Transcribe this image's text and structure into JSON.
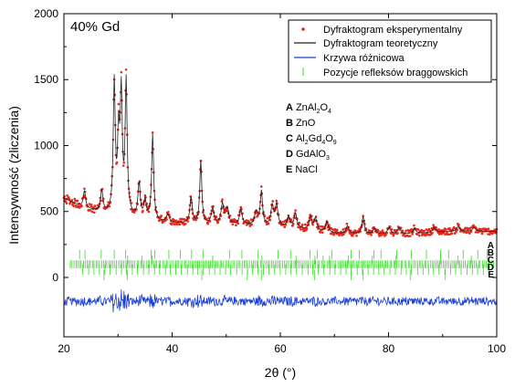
{
  "chart_data": {
    "type": "scatter",
    "annotation": "40% Gd",
    "xlabel": "2θ (°)",
    "ylabel": "Intensywność (zliczenia)",
    "xlim": [
      20,
      100
    ],
    "ylim": [
      -450,
      2000
    ],
    "x_ticks": [
      20,
      40,
      60,
      80,
      100
    ],
    "y_ticks": [
      0,
      500,
      1000,
      1500,
      2000
    ],
    "grid": false,
    "legend_position": "top-right",
    "legend": [
      {
        "label": "Dyfraktogram eksperymentalny",
        "marker": "dot",
        "color": "#e8281e"
      },
      {
        "label": "Dyfraktogram teoretyczny",
        "marker": "line",
        "color": "#222222"
      },
      {
        "label": "Krzywa różnicowa",
        "marker": "line",
        "color": "#1a3fd6"
      },
      {
        "label": "Pozycje refleksów braggowskich",
        "marker": "tick",
        "color": "#33dd22"
      }
    ],
    "phases": [
      {
        "letter": "A",
        "name": "ZnAl",
        "sub1": "2",
        "mid": "O",
        "sub2": "4",
        "tail": ""
      },
      {
        "letter": "B",
        "name": "ZnO",
        "sub1": "",
        "mid": "",
        "sub2": "",
        "tail": ""
      },
      {
        "letter": "C",
        "name": "Al",
        "sub1": "2",
        "mid": "Gd",
        "sub2": "4",
        "tail": "O",
        "sub3": "9"
      },
      {
        "letter": "D",
        "name": "GdAlO",
        "sub1": "3",
        "mid": "",
        "sub2": "",
        "tail": ""
      },
      {
        "letter": "E",
        "name": "NaCl",
        "sub1": "",
        "mid": "",
        "sub2": "",
        "tail": ""
      }
    ],
    "background": [
      [
        20,
        600
      ],
      [
        22,
        560
      ],
      [
        24,
        520
      ],
      [
        26,
        500
      ],
      [
        28,
        480
      ],
      [
        30,
        470
      ],
      [
        32,
        460
      ],
      [
        34,
        440
      ],
      [
        36,
        430
      ],
      [
        38,
        420
      ],
      [
        40,
        410
      ],
      [
        42,
        410
      ],
      [
        44,
        405
      ],
      [
        46,
        400
      ],
      [
        48,
        400
      ],
      [
        50,
        400
      ],
      [
        52,
        395
      ],
      [
        54,
        395
      ],
      [
        56,
        390
      ],
      [
        58,
        385
      ],
      [
        60,
        380
      ],
      [
        62,
        375
      ],
      [
        64,
        365
      ],
      [
        66,
        355
      ],
      [
        68,
        345
      ],
      [
        70,
        335
      ],
      [
        72,
        330
      ],
      [
        74,
        330
      ],
      [
        76,
        330
      ],
      [
        78,
        330
      ],
      [
        80,
        330
      ],
      [
        82,
        330
      ],
      [
        84,
        330
      ],
      [
        86,
        335
      ],
      [
        88,
        340
      ],
      [
        90,
        345
      ],
      [
        92,
        350
      ],
      [
        94,
        350
      ],
      [
        96,
        350
      ],
      [
        98,
        350
      ],
      [
        100,
        350
      ]
    ],
    "peaks": [
      {
        "x": 23.8,
        "height": 130,
        "width": 0.25
      },
      {
        "x": 27.0,
        "height": 160,
        "width": 0.25
      },
      {
        "x": 29.3,
        "height": 990,
        "width": 0.22
      },
      {
        "x": 30.1,
        "height": 560,
        "width": 0.22
      },
      {
        "x": 30.6,
        "height": 880,
        "width": 0.22
      },
      {
        "x": 31.5,
        "height": 1000,
        "width": 0.22
      },
      {
        "x": 33.9,
        "height": 260,
        "width": 0.25
      },
      {
        "x": 35.0,
        "height": 140,
        "width": 0.25
      },
      {
        "x": 36.4,
        "height": 650,
        "width": 0.22
      },
      {
        "x": 39.2,
        "height": 60,
        "width": 0.3
      },
      {
        "x": 43.5,
        "height": 200,
        "width": 0.25
      },
      {
        "x": 45.3,
        "height": 480,
        "width": 0.22
      },
      {
        "x": 47.5,
        "height": 120,
        "width": 0.3
      },
      {
        "x": 49.3,
        "height": 150,
        "width": 0.3
      },
      {
        "x": 50.2,
        "height": 120,
        "width": 0.3
      },
      {
        "x": 52.7,
        "height": 120,
        "width": 0.3
      },
      {
        "x": 55.5,
        "height": 100,
        "width": 0.3
      },
      {
        "x": 56.5,
        "height": 260,
        "width": 0.25
      },
      {
        "x": 58.5,
        "height": 150,
        "width": 0.3
      },
      {
        "x": 59.3,
        "height": 160,
        "width": 0.3
      },
      {
        "x": 61.5,
        "height": 80,
        "width": 0.3
      },
      {
        "x": 62.8,
        "height": 110,
        "width": 0.3
      },
      {
        "x": 65.6,
        "height": 100,
        "width": 0.3
      },
      {
        "x": 66.5,
        "height": 90,
        "width": 0.3
      },
      {
        "x": 68.6,
        "height": 80,
        "width": 0.3
      },
      {
        "x": 72.4,
        "height": 60,
        "width": 0.3
      },
      {
        "x": 75.3,
        "height": 130,
        "width": 0.25
      },
      {
        "x": 77.4,
        "height": 40,
        "width": 0.3
      },
      {
        "x": 80.1,
        "height": 50,
        "width": 0.3
      },
      {
        "x": 82.0,
        "height": 50,
        "width": 0.3
      },
      {
        "x": 84.8,
        "height": 40,
        "width": 0.3
      },
      {
        "x": 88.4,
        "height": 40,
        "width": 0.3
      },
      {
        "x": 92.9,
        "height": 40,
        "width": 0.3
      },
      {
        "x": 95.8,
        "height": 30,
        "width": 0.3
      }
    ],
    "difference_baseline": -180,
    "bragg_rows": [
      {
        "phase": "A",
        "y_top": 210,
        "y_bottom": 140,
        "positions": [
          22.9,
          23.9,
          26.9,
          29.3,
          31.4,
          36.1,
          36.8,
          39.4,
          41.5,
          43.6,
          45.7,
          50.6,
          52.9,
          55.9,
          59.6,
          61.9,
          65.5,
          66.8,
          69.5,
          73.1,
          74.6,
          77.3,
          78.6,
          81.5,
          84.2,
          87.0,
          89.6,
          91.1,
          93.8,
          96.5,
          98.2
        ]
      },
      {
        "phase": "B",
        "y_top": 165,
        "y_bottom": 100,
        "positions": [
          31.8,
          34.4,
          36.3,
          47.5,
          56.6,
          62.9,
          66.4,
          67.9,
          69.1,
          72.6,
          77.0,
          81.4,
          89.6,
          92.8,
          95.3,
          98.6
        ]
      },
      {
        "phase": "C",
        "y_top": 130,
        "y_bottom": 70,
        "start": 21.0,
        "end": 99.5,
        "count": 230
      },
      {
        "phase": "D",
        "y_top": 100,
        "y_bottom": 20,
        "start": 23.0,
        "end": 99.0,
        "count": 75
      },
      {
        "phase": "E",
        "y_top": 60,
        "y_bottom": -20,
        "positions": [
          27.4,
          31.7,
          45.5,
          53.9,
          56.5,
          66.3,
          73.1,
          75.3,
          84.0,
          90.5,
          101.0
        ]
      }
    ],
    "colors": {
      "experimental": "#e8281e",
      "calculated": "#222222",
      "difference": "#1a3fd6",
      "bragg": "#33dd22"
    }
  }
}
